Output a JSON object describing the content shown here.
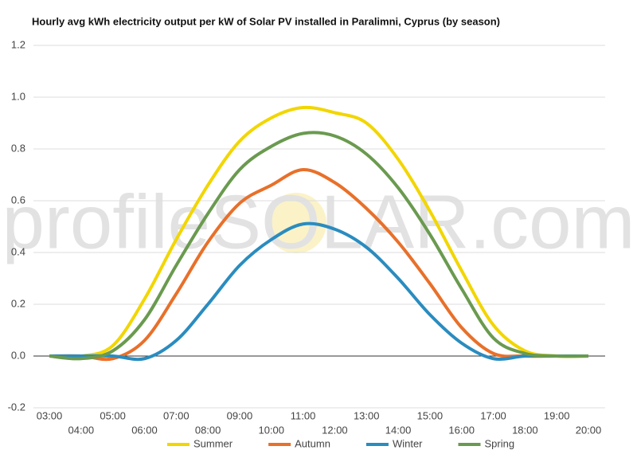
{
  "chart_data": {
    "type": "line",
    "title": "Hourly avg kWh electricity output per kW of Solar PV installed in Paralimni, Cyprus (by season)",
    "watermark": "profileSOLAR.com",
    "categories": [
      "03:00",
      "04:00",
      "05:00",
      "06:00",
      "07:00",
      "08:00",
      "09:00",
      "10:00",
      "11:00",
      "12:00",
      "13:00",
      "14:00",
      "15:00",
      "16:00",
      "17:00",
      "18:00",
      "19:00",
      "20:00"
    ],
    "series": [
      {
        "name": "Summer",
        "color": "#f2d600",
        "values": [
          0,
          0,
          0.04,
          0.22,
          0.45,
          0.66,
          0.83,
          0.92,
          0.96,
          0.94,
          0.9,
          0.76,
          0.56,
          0.33,
          0.12,
          0.02,
          0,
          0
        ]
      },
      {
        "name": "Autumn",
        "color": "#e8702a",
        "values": [
          0,
          0,
          -0.01,
          0.06,
          0.24,
          0.44,
          0.59,
          0.66,
          0.72,
          0.67,
          0.57,
          0.44,
          0.28,
          0.11,
          0.01,
          0,
          0,
          0
        ]
      },
      {
        "name": "Winter",
        "color": "#2a8cbf",
        "values": [
          0,
          0,
          0,
          -0.01,
          0.06,
          0.2,
          0.35,
          0.45,
          0.51,
          0.49,
          0.42,
          0.3,
          0.16,
          0.05,
          -0.01,
          0,
          0,
          0
        ]
      },
      {
        "name": "Spring",
        "color": "#6a9a4f",
        "values": [
          0,
          -0.01,
          0.02,
          0.14,
          0.35,
          0.55,
          0.72,
          0.81,
          0.86,
          0.85,
          0.78,
          0.65,
          0.47,
          0.26,
          0.07,
          0.01,
          0,
          0
        ]
      }
    ],
    "ylim": [
      -0.2,
      1.2
    ],
    "yticks": [
      -0.2,
      {
        "value": 0,
        "label": "0.0"
      },
      0.2,
      0.4,
      0.6,
      0.8,
      {
        "value": 1,
        "label": "1.0"
      },
      1.2
    ],
    "grid": true
  }
}
